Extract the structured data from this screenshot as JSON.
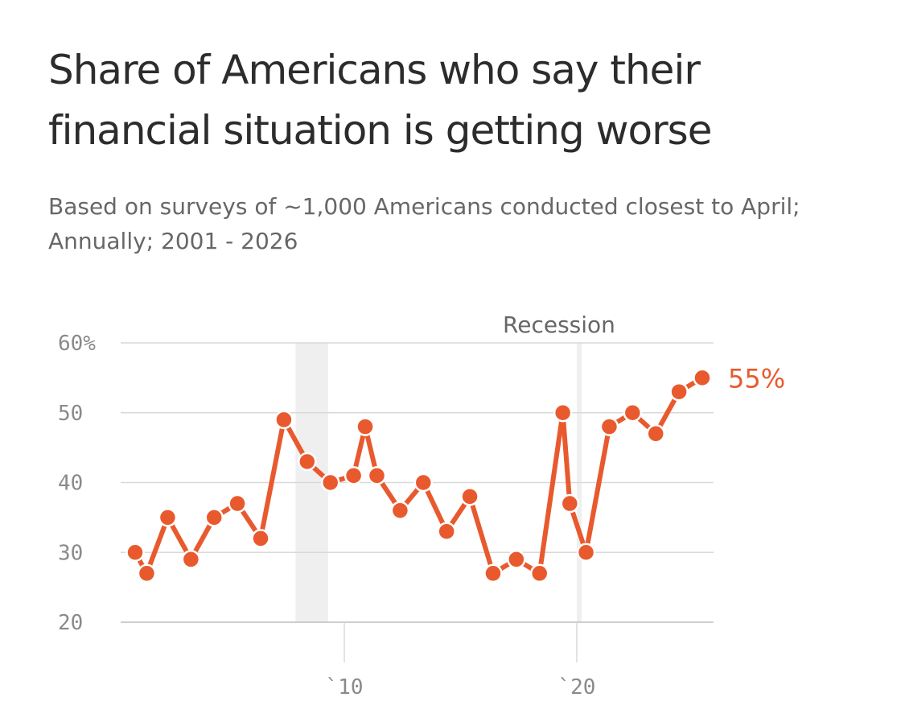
{
  "chart_data": {
    "type": "line",
    "title": "Share of Americans who say their financial situation is getting worse",
    "subtitle": "Based on surveys of ~1,000 Americans conducted closest to April; Annually; 2001 - 2026",
    "ylim": [
      20,
      60
    ],
    "xlim": [
      2001,
      2026
    ],
    "y_ticks": [
      {
        "value": 60,
        "label": "60%"
      },
      {
        "value": 50,
        "label": "50"
      },
      {
        "value": 40,
        "label": "40"
      },
      {
        "value": 30,
        "label": "30"
      },
      {
        "value": 20,
        "label": "20"
      }
    ],
    "x_ticks": [
      {
        "value": 2010,
        "label": "`10"
      },
      {
        "value": 2020,
        "label": "`20"
      }
    ],
    "grid": true,
    "recession_bands": [
      {
        "start": 2007.9,
        "end": 2009.3
      },
      {
        "start": 2020.0,
        "end": 2020.2
      }
    ],
    "recession_label": "Recession",
    "series": [
      {
        "color": "#e85a2e",
        "points": [
          {
            "x": 2001.0,
            "y": 30
          },
          {
            "x": 2001.5,
            "y": 27
          },
          {
            "x": 2002.4,
            "y": 35
          },
          {
            "x": 2003.4,
            "y": 29
          },
          {
            "x": 2004.4,
            "y": 35
          },
          {
            "x": 2005.4,
            "y": 37
          },
          {
            "x": 2006.4,
            "y": 32
          },
          {
            "x": 2007.4,
            "y": 49
          },
          {
            "x": 2008.4,
            "y": 43
          },
          {
            "x": 2009.4,
            "y": 40
          },
          {
            "x": 2010.4,
            "y": 41
          },
          {
            "x": 2010.9,
            "y": 48
          },
          {
            "x": 2011.4,
            "y": 41
          },
          {
            "x": 2012.4,
            "y": 36
          },
          {
            "x": 2013.4,
            "y": 40
          },
          {
            "x": 2014.4,
            "y": 33
          },
          {
            "x": 2015.4,
            "y": 38
          },
          {
            "x": 2016.4,
            "y": 27
          },
          {
            "x": 2017.4,
            "y": 29
          },
          {
            "x": 2018.4,
            "y": 27
          },
          {
            "x": 2019.4,
            "y": 50
          },
          {
            "x": 2019.7,
            "y": 37
          },
          {
            "x": 2020.4,
            "y": 30
          },
          {
            "x": 2021.4,
            "y": 48
          },
          {
            "x": 2022.4,
            "y": 50
          },
          {
            "x": 2023.4,
            "y": 47
          },
          {
            "x": 2024.4,
            "y": 53
          },
          {
            "x": 2025.4,
            "y": 55
          }
        ]
      }
    ],
    "end_label": "55%"
  }
}
